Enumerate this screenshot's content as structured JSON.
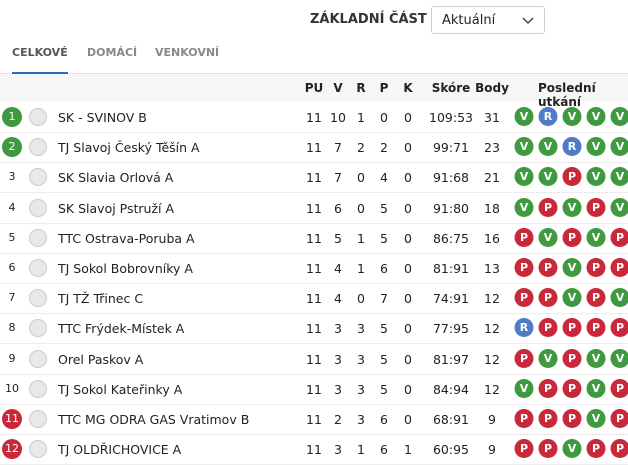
{
  "header": {
    "phase_label": "ZÁKLADNÍ ČÁST",
    "select_value": "Aktuální"
  },
  "tabs": [
    "CELKOVÉ",
    "DOMÁCÍ",
    "VENKOVNÍ"
  ],
  "table": {
    "columns": [
      "PU",
      "V",
      "R",
      "P",
      "K",
      "Skóre",
      "Body",
      "Poslední utkání"
    ],
    "rows": [
      {
        "rank": 1,
        "team": "SK - SVINOV B",
        "pu": 11,
        "v": 10,
        "r": 1,
        "p": 0,
        "k": 0,
        "score": "109:53",
        "body": 31,
        "form": [
          "V",
          "R",
          "V",
          "V",
          "V"
        ]
      },
      {
        "rank": 2,
        "team": "TJ Slavoj Český Těšín A",
        "pu": 11,
        "v": 7,
        "r": 2,
        "p": 2,
        "k": 0,
        "score": "99:71",
        "body": 23,
        "form": [
          "V",
          "V",
          "R",
          "V",
          "V"
        ]
      },
      {
        "rank": 3,
        "team": "SK Slavia Orlová A",
        "pu": 11,
        "v": 7,
        "r": 0,
        "p": 4,
        "k": 0,
        "score": "91:68",
        "body": 21,
        "form": [
          "V",
          "V",
          "P",
          "V",
          "V"
        ]
      },
      {
        "rank": 4,
        "team": "SK Slavoj Pstruží A",
        "pu": 11,
        "v": 6,
        "r": 0,
        "p": 5,
        "k": 0,
        "score": "91:80",
        "body": 18,
        "form": [
          "V",
          "P",
          "V",
          "P",
          "V"
        ]
      },
      {
        "rank": 5,
        "team": "TTC Ostrava-Poruba A",
        "pu": 11,
        "v": 5,
        "r": 1,
        "p": 5,
        "k": 0,
        "score": "86:75",
        "body": 16,
        "form": [
          "P",
          "V",
          "P",
          "V",
          "P"
        ]
      },
      {
        "rank": 6,
        "team": "TJ Sokol Bobrovníky A",
        "pu": 11,
        "v": 4,
        "r": 1,
        "p": 6,
        "k": 0,
        "score": "81:91",
        "body": 13,
        "form": [
          "P",
          "P",
          "V",
          "P",
          "P"
        ]
      },
      {
        "rank": 7,
        "team": "TJ TŽ Třinec C",
        "pu": 11,
        "v": 4,
        "r": 0,
        "p": 7,
        "k": 0,
        "score": "74:91",
        "body": 12,
        "form": [
          "P",
          "P",
          "V",
          "P",
          "V"
        ]
      },
      {
        "rank": 8,
        "team": "TTC Frýdek-Místek A",
        "pu": 11,
        "v": 3,
        "r": 3,
        "p": 5,
        "k": 0,
        "score": "77:95",
        "body": 12,
        "form": [
          "R",
          "P",
          "P",
          "P",
          "P"
        ]
      },
      {
        "rank": 9,
        "team": "Orel Paskov A",
        "pu": 11,
        "v": 3,
        "r": 3,
        "p": 5,
        "k": 0,
        "score": "81:97",
        "body": 12,
        "form": [
          "P",
          "V",
          "P",
          "V",
          "V"
        ]
      },
      {
        "rank": 10,
        "team": "TJ Sokol Kateřinky A",
        "pu": 11,
        "v": 3,
        "r": 3,
        "p": 5,
        "k": 0,
        "score": "84:94",
        "body": 12,
        "form": [
          "V",
          "P",
          "P",
          "V",
          "P"
        ]
      },
      {
        "rank": 11,
        "team": "TTC MG ODRA GAS Vratimov B",
        "pu": 11,
        "v": 2,
        "r": 3,
        "p": 6,
        "k": 0,
        "score": "68:91",
        "body": 9,
        "form": [
          "P",
          "P",
          "P",
          "V",
          "P"
        ]
      },
      {
        "rank": 12,
        "team": "TJ OLDŘICHOVICE A",
        "pu": 11,
        "v": 3,
        "r": 1,
        "p": 6,
        "k": 1,
        "score": "60:95",
        "body": 9,
        "form": [
          "P",
          "P",
          "V",
          "P",
          "P"
        ]
      }
    ]
  }
}
